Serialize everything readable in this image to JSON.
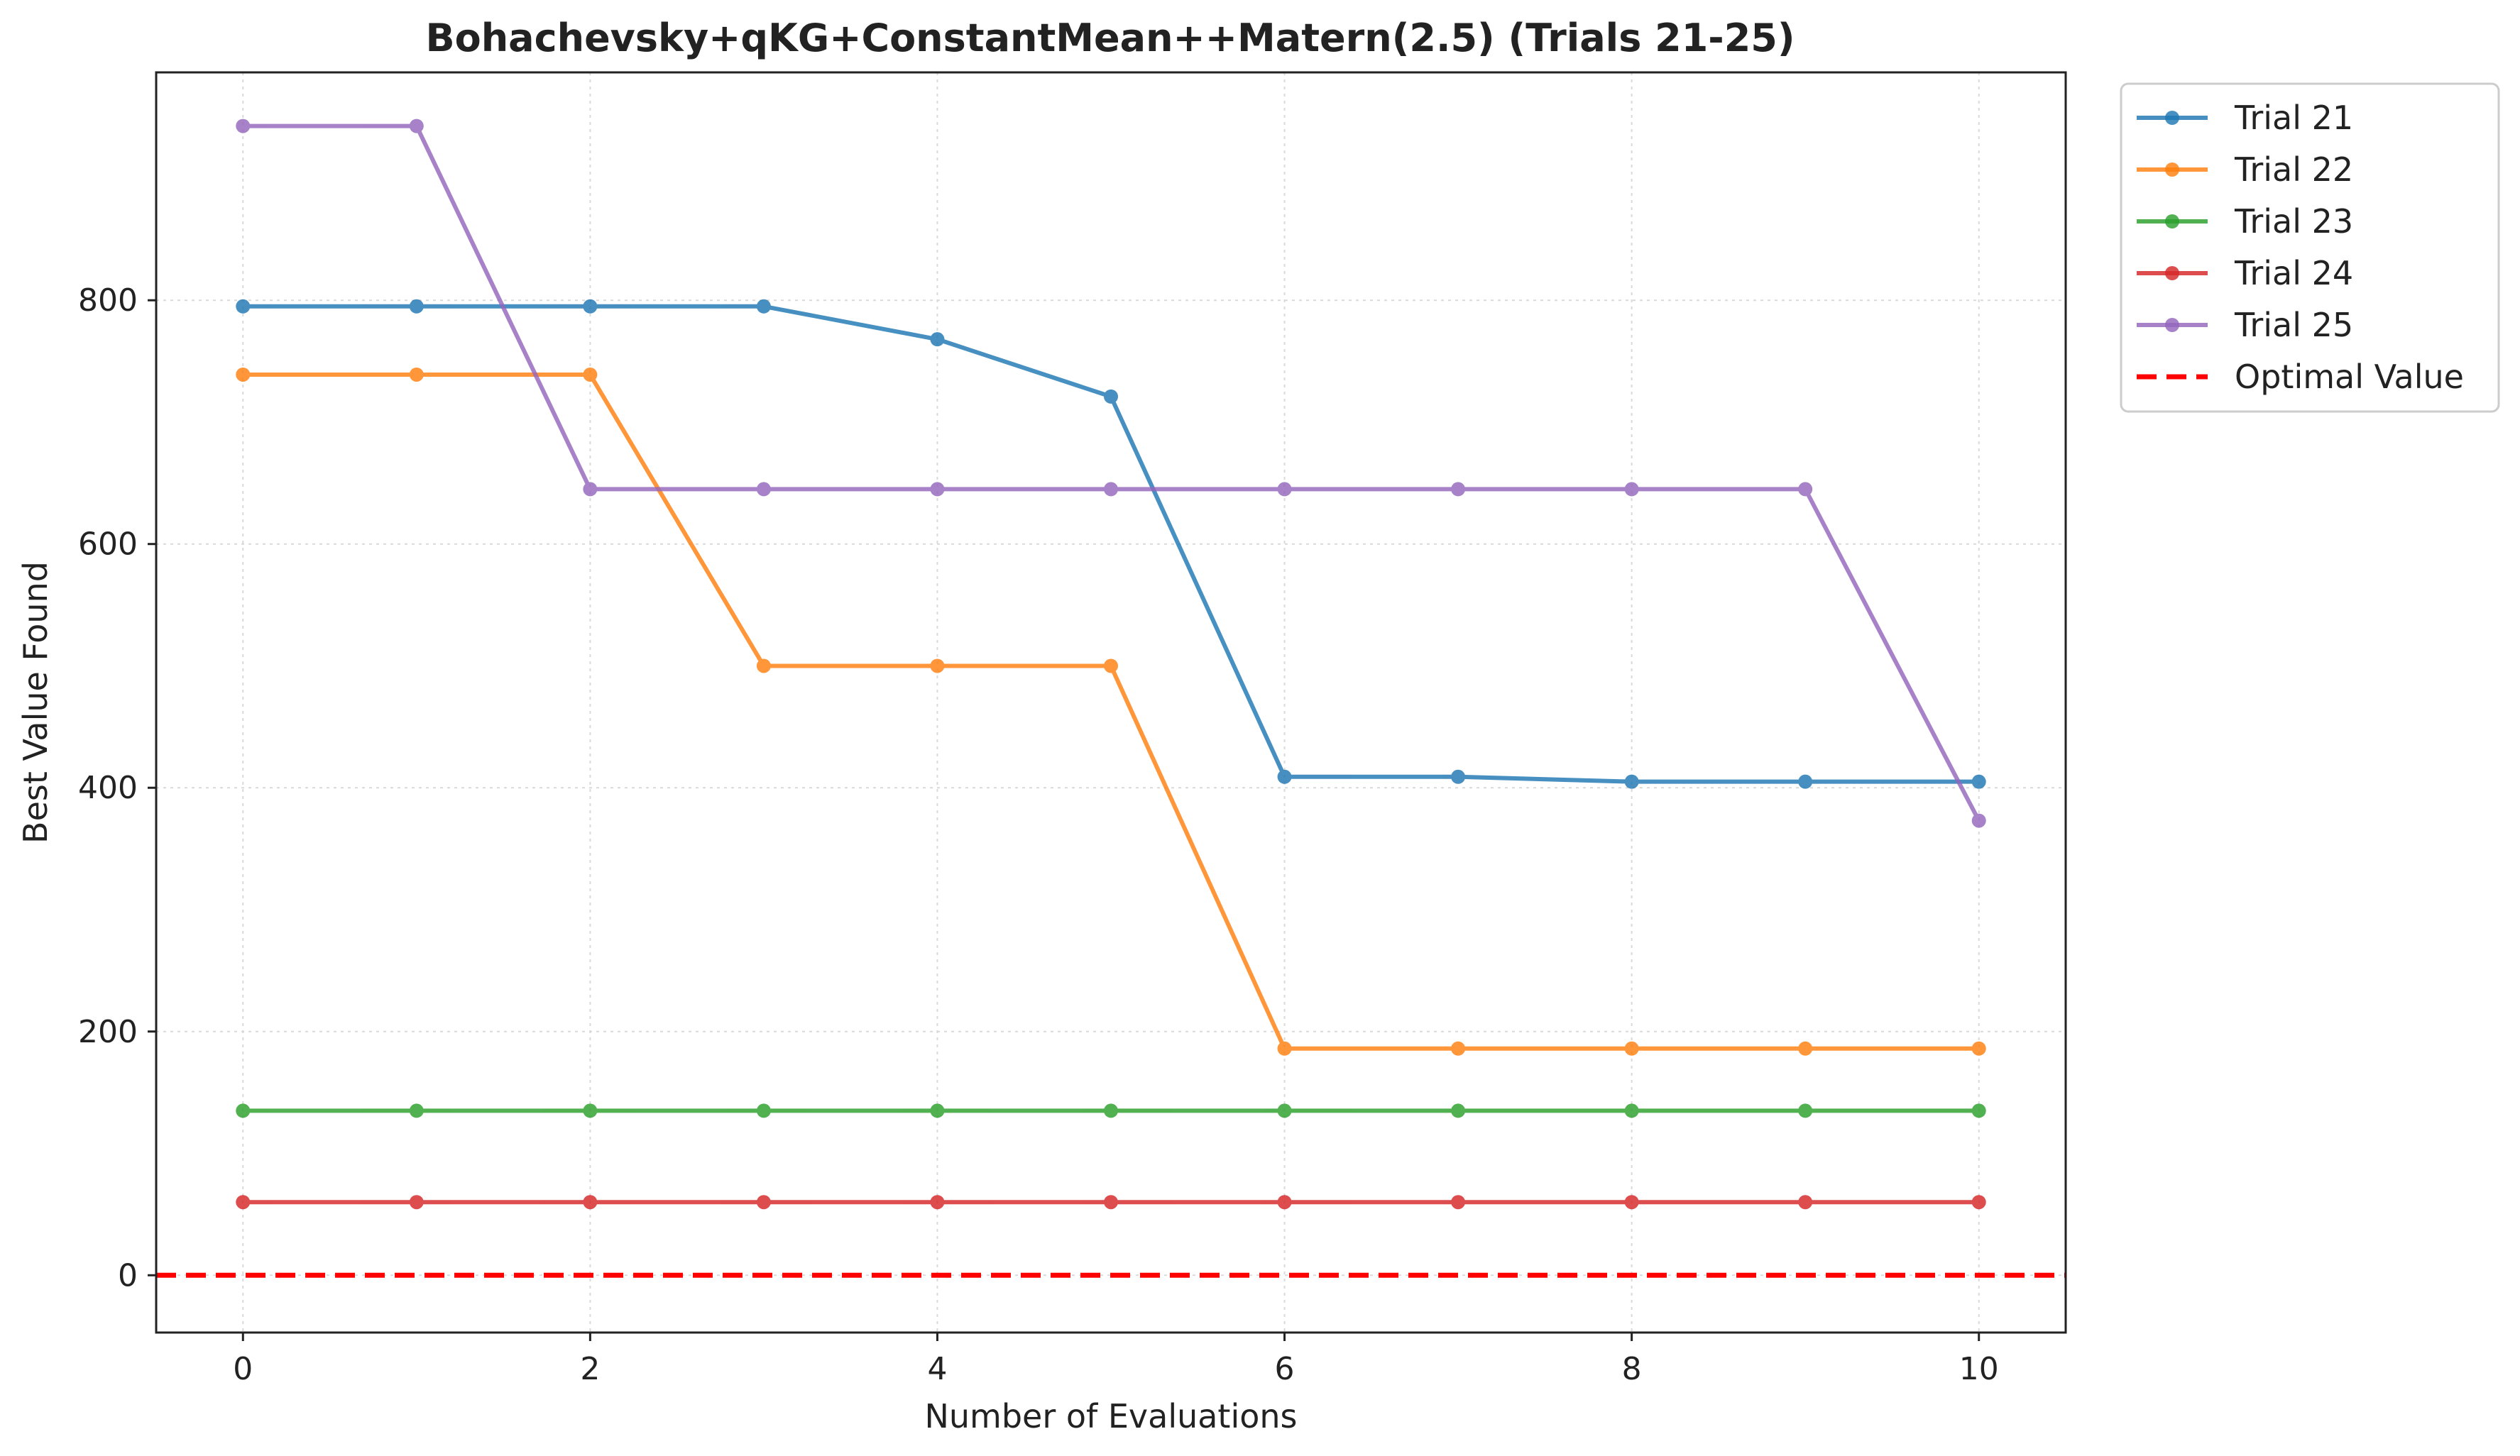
{
  "chart_data": {
    "type": "line",
    "title": "Bohachevsky+qKG+ConstantMean++Matern(2.5) (Trials 21-25)",
    "xlabel": "Number of Evaluations",
    "ylabel": "Best Value Found",
    "xlim": [
      -0.5,
      10.5
    ],
    "ylim": [
      -47,
      987
    ],
    "xticks": [
      0,
      2,
      4,
      6,
      8,
      10
    ],
    "yticks": [
      0,
      200,
      400,
      600,
      800
    ],
    "grid": true,
    "legend_position": "outside-top-right",
    "x": [
      0,
      1,
      2,
      3,
      4,
      5,
      6,
      7,
      8,
      9,
      10
    ],
    "series": [
      {
        "name": "Trial 21",
        "color": "#1f77b4",
        "values": [
          795,
          795,
          795,
          795,
          768,
          721,
          409,
          409,
          405,
          405,
          405
        ]
      },
      {
        "name": "Trial 22",
        "color": "#ff7f0e",
        "values": [
          739,
          739,
          739,
          500,
          500,
          500,
          186,
          186,
          186,
          186,
          186
        ]
      },
      {
        "name": "Trial 23",
        "color": "#2ca02c",
        "values": [
          135,
          135,
          135,
          135,
          135,
          135,
          135,
          135,
          135,
          135,
          135
        ]
      },
      {
        "name": "Trial 24",
        "color": "#d62728",
        "values": [
          60,
          60,
          60,
          60,
          60,
          60,
          60,
          60,
          60,
          60,
          60
        ]
      },
      {
        "name": "Trial 25",
        "color": "#9467bd",
        "values": [
          943,
          943,
          645,
          645,
          645,
          645,
          645,
          645,
          645,
          645,
          373
        ]
      }
    ],
    "reference_line": {
      "name": "Optimal Value",
      "value": 0,
      "color": "#ff0000",
      "style": "dashed"
    }
  }
}
